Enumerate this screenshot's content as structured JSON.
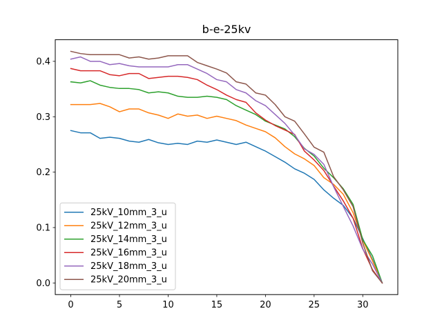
{
  "chart_data": {
    "type": "line",
    "title": "b-e-25kv",
    "xlabel": "",
    "ylabel": "",
    "xlim": [
      -1.6,
      33.6
    ],
    "ylim": [
      -0.021,
      0.439
    ],
    "xticks": [
      0,
      5,
      10,
      15,
      20,
      25,
      30
    ],
    "yticks": [
      0.0,
      0.1,
      0.2,
      0.3,
      0.4
    ],
    "ytick_labels": [
      "0.0",
      "0.1",
      "0.2",
      "0.3",
      "0.4"
    ],
    "grid": false,
    "legend_position": "lower-left",
    "x": [
      0,
      1,
      2,
      3,
      4,
      5,
      6,
      7,
      8,
      9,
      10,
      11,
      12,
      13,
      14,
      15,
      16,
      17,
      18,
      19,
      20,
      21,
      22,
      23,
      24,
      25,
      26,
      27,
      28,
      29,
      30,
      31,
      32
    ],
    "series": [
      {
        "name": "25kV_10mm_3_u",
        "color": "#1f77b4",
        "values": [
          0.275,
          0.271,
          0.271,
          0.261,
          0.263,
          0.261,
          0.256,
          0.254,
          0.259,
          0.253,
          0.25,
          0.252,
          0.25,
          0.256,
          0.254,
          0.258,
          0.254,
          0.25,
          0.254,
          0.246,
          0.238,
          0.228,
          0.218,
          0.206,
          0.198,
          0.187,
          0.168,
          0.153,
          0.14,
          0.117,
          0.08,
          0.042,
          0.0
        ]
      },
      {
        "name": "25kV_12mm_3_u",
        "color": "#ff7f0e",
        "values": [
          0.322,
          0.322,
          0.322,
          0.324,
          0.318,
          0.309,
          0.314,
          0.314,
          0.307,
          0.303,
          0.297,
          0.305,
          0.301,
          0.303,
          0.297,
          0.301,
          0.297,
          0.293,
          0.285,
          0.279,
          0.273,
          0.262,
          0.246,
          0.233,
          0.224,
          0.212,
          0.19,
          0.178,
          0.16,
          0.127,
          0.077,
          0.04,
          0.0
        ]
      },
      {
        "name": "25kV_14mm_3_u",
        "color": "#2ca02c",
        "values": [
          0.363,
          0.361,
          0.365,
          0.357,
          0.353,
          0.351,
          0.351,
          0.349,
          0.343,
          0.345,
          0.343,
          0.337,
          0.335,
          0.335,
          0.337,
          0.335,
          0.331,
          0.32,
          0.312,
          0.304,
          0.292,
          0.285,
          0.278,
          0.264,
          0.243,
          0.229,
          0.207,
          0.19,
          0.17,
          0.142,
          0.078,
          0.049,
          0.0
        ]
      },
      {
        "name": "25kV_16mm_3_u",
        "color": "#d62728",
        "values": [
          0.387,
          0.383,
          0.383,
          0.383,
          0.376,
          0.374,
          0.378,
          0.378,
          0.369,
          0.371,
          0.373,
          0.373,
          0.371,
          0.367,
          0.357,
          0.349,
          0.339,
          0.331,
          0.326,
          0.307,
          0.294,
          0.284,
          0.276,
          0.268,
          0.238,
          0.222,
          0.203,
          0.175,
          0.148,
          0.117,
          0.062,
          0.024,
          0.0
        ]
      },
      {
        "name": "25kV_18mm_3_u",
        "color": "#9467bd",
        "values": [
          0.404,
          0.408,
          0.4,
          0.4,
          0.394,
          0.396,
          0.392,
          0.39,
          0.39,
          0.39,
          0.39,
          0.394,
          0.394,
          0.386,
          0.378,
          0.367,
          0.363,
          0.349,
          0.343,
          0.329,
          0.32,
          0.304,
          0.288,
          0.267,
          0.242,
          0.232,
          0.214,
          0.174,
          0.138,
          0.103,
          0.061,
          0.034,
          0.0
        ]
      },
      {
        "name": "25kV_20mm_3_u",
        "color": "#8c564b",
        "values": [
          0.418,
          0.414,
          0.412,
          0.412,
          0.412,
          0.412,
          0.406,
          0.408,
          0.404,
          0.406,
          0.41,
          0.41,
          0.41,
          0.398,
          0.392,
          0.386,
          0.379,
          0.363,
          0.359,
          0.343,
          0.339,
          0.322,
          0.3,
          0.292,
          0.269,
          0.245,
          0.236,
          0.192,
          0.168,
          0.138,
          0.072,
          0.022,
          0.0
        ]
      }
    ]
  }
}
